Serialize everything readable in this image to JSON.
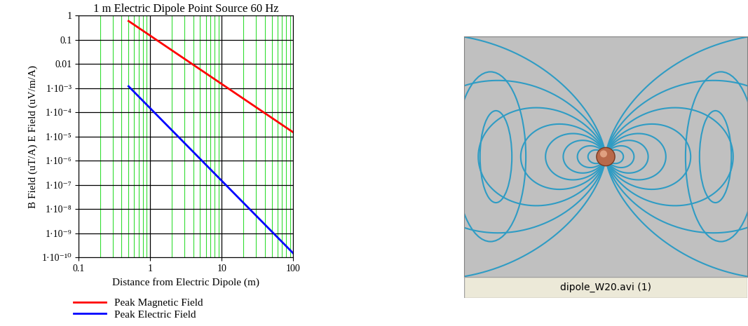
{
  "chart_data": {
    "type": "line",
    "title": "1 m Electric Dipole Point Source 60 Hz",
    "x_label": "Distance from Electric Dipole (m)",
    "y_label": "B Field (uT/A) E Field (uV/m/A)",
    "log": true,
    "grid": true,
    "legend": "lower left",
    "x": [
      0.5,
      1,
      2,
      5,
      10,
      20,
      50,
      100
    ],
    "series": [
      {
        "name": "Peak Magnetic Field",
        "color": "#ff0000",
        "values": [
          0.6,
          0.15,
          0.0375,
          0.006,
          0.0015,
          0.000375,
          6e-05,
          1.5e-05
        ]
      },
      {
        "name": "Peak Electric Field",
        "color": "#0000ff",
        "values": [
          0.0012,
          0.00015,
          1.875e-05,
          1.2e-06,
          1.5e-07,
          1.875e-08,
          1.2e-09,
          1.5e-10
        ]
      }
    ],
    "xlim": [
      0.1,
      100
    ],
    "xticks": [
      0.1,
      1,
      10,
      100
    ],
    "ylim": [
      1e-10,
      1
    ],
    "yticks": [
      1,
      0.1,
      0.01,
      {
        "value": 0.001,
        "label": "1·10⁻³"
      },
      {
        "value": 0.0001,
        "label": "1·10⁻⁴"
      },
      {
        "value": 1e-05,
        "label": "1·10⁻⁵"
      },
      {
        "value": 1e-06,
        "label": "1·10⁻⁶"
      },
      {
        "value": 1e-07,
        "label": "1·10⁻⁷"
      },
      {
        "value": 1e-08,
        "label": "1·10⁻⁸"
      },
      {
        "value": 1e-09,
        "label": "1·10⁻⁹"
      },
      {
        "value": 1e-10,
        "label": "1·10⁻¹⁰"
      }
    ]
  },
  "image": {
    "caption": "dipole_W20.avi (1)"
  }
}
